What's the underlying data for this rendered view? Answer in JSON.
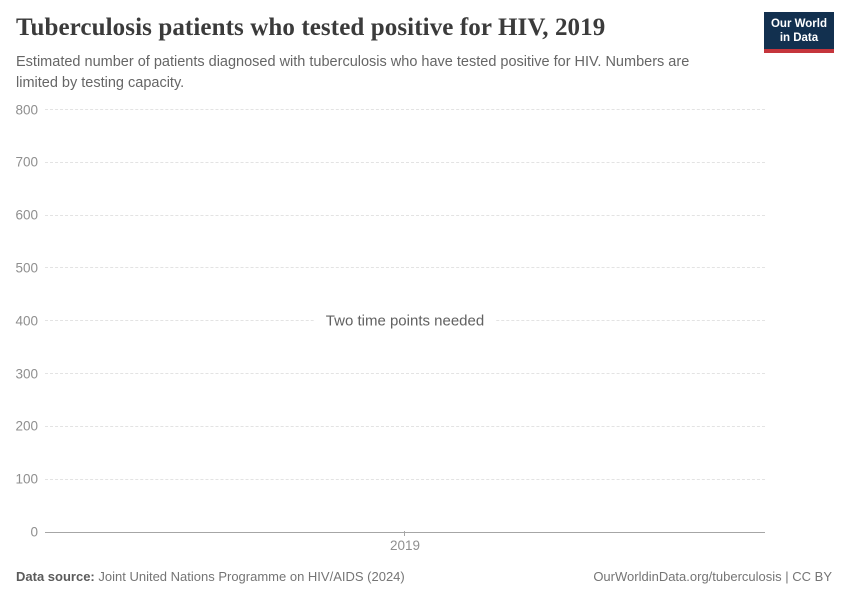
{
  "header": {
    "title": "Tuberculosis patients who tested positive for HIV, 2019",
    "subtitle": "Estimated number of patients diagnosed with tuberculosis who have tested positive for HIV. Numbers are limited by testing capacity."
  },
  "logo": {
    "line1": "Our World",
    "line2": "in Data",
    "bg_color": "#12304f",
    "accent_color": "#c5353c"
  },
  "chart_data": {
    "type": "line",
    "title": "Tuberculosis patients who tested positive for HIV, 2019",
    "message": "Two time points needed",
    "series": [],
    "x": [
      2019
    ],
    "xtick_labels": [
      "2019"
    ],
    "yticks": [
      0,
      100,
      200,
      300,
      400,
      500,
      600,
      700,
      800
    ],
    "ylim": [
      0,
      800
    ],
    "xlabel": "",
    "ylabel": "",
    "grid": "horizontal-dashed",
    "legend": "none"
  },
  "footer": {
    "source_label": "Data source:",
    "source_value": "Joint United Nations Programme on HIV/AIDS (2024)",
    "url": "OurWorldinData.org/tuberculosis",
    "divider": " | ",
    "license": "CC BY"
  },
  "colors": {
    "title": "#3b3b3b",
    "subtitle": "#666666",
    "gridline": "#e3e3e3",
    "axis_line": "#a6a6a6",
    "tick_label": "#8f8f8f",
    "message": "#616161",
    "logo_navy": "#12304f",
    "logo_red": "#c5353c"
  }
}
